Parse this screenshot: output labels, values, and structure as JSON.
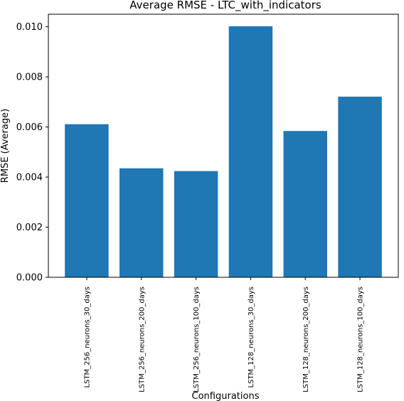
{
  "chart_data": {
    "type": "bar",
    "title": "Average RMSE - LTC_with_indicators",
    "xlabel": "Configurations",
    "ylabel": "RMSE (Average)",
    "categories": [
      "LSTM_256_neurons_30_days",
      "LSTM_256_neurons_200_days",
      "LSTM_256_neurons_100_days",
      "LSTM_128_neurons_30_days",
      "LSTM_128_neurons_200_days",
      "LSTM_128_neurons_100_days"
    ],
    "values": [
      0.00611,
      0.00435,
      0.00424,
      0.01002,
      0.00584,
      0.00721
    ],
    "ylim": [
      0,
      0.0105
    ],
    "yticks": [
      "0.000",
      "0.002",
      "0.004",
      "0.006",
      "0.008",
      "0.010"
    ],
    "ytick_values": [
      0,
      0.002,
      0.004,
      0.006,
      0.008,
      0.01
    ],
    "bar_color": "#1f77b4",
    "grid": false
  }
}
